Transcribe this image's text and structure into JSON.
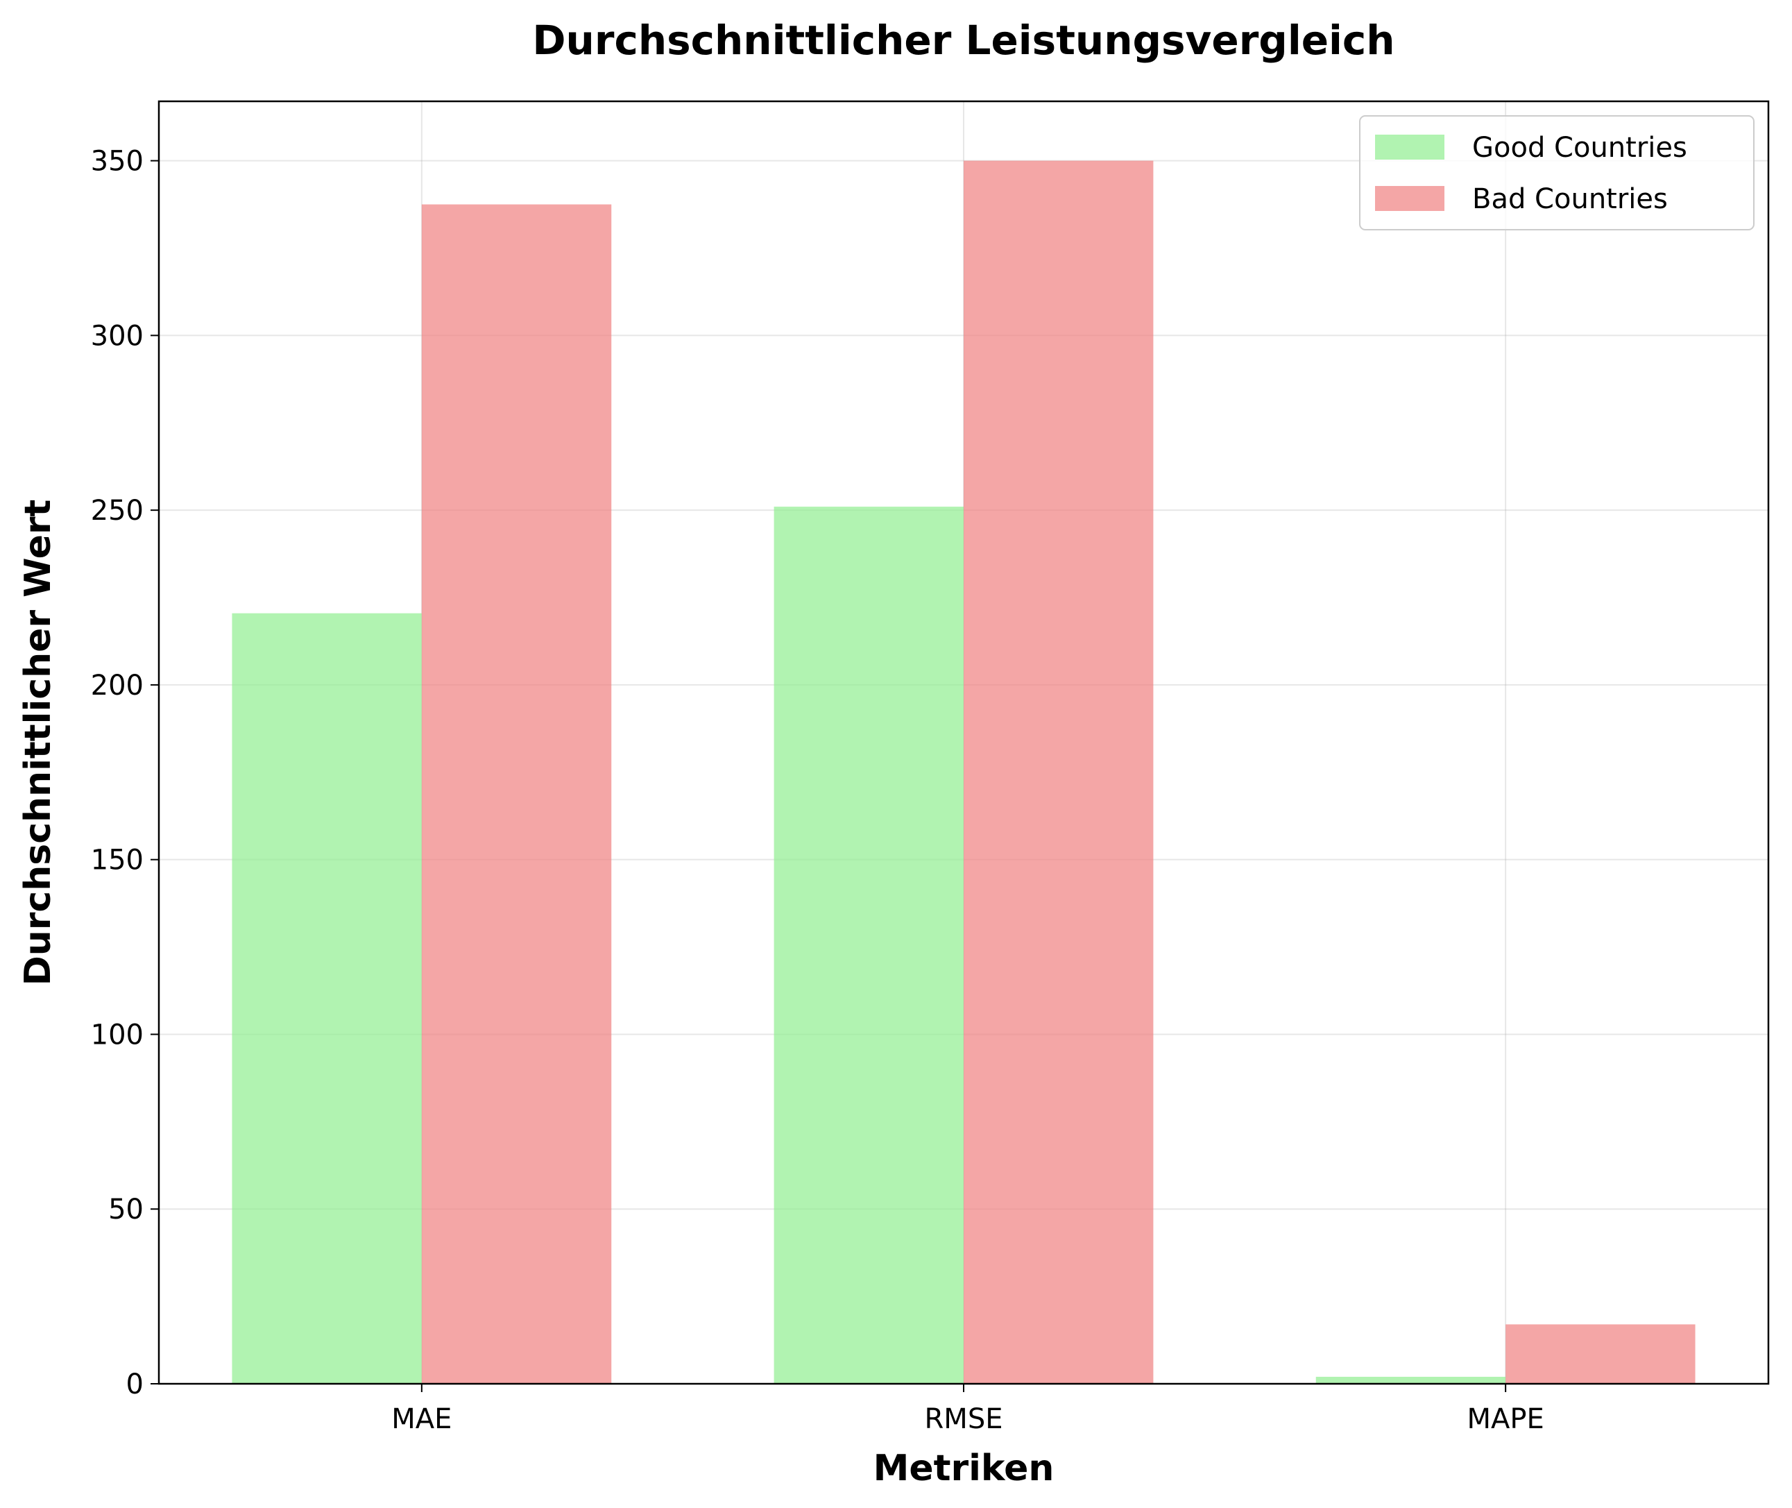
{
  "chart_data": {
    "type": "bar",
    "title": "Durchschnittlicher Leistungsvergleich",
    "xlabel": "Metriken",
    "ylabel": "Durchschnittlicher Wert",
    "categories": [
      "MAE",
      "RMSE",
      "MAPE"
    ],
    "series": [
      {
        "name": "Good Countries",
        "values": [
          220.5,
          251.0,
          2.0
        ],
        "color": "#90ee90"
      },
      {
        "name": "Bad Countries",
        "values": [
          337.5,
          350.0,
          17.0
        ],
        "color": "#f08080"
      }
    ],
    "ylim": [
      0,
      367
    ],
    "yticks": [
      0,
      50,
      100,
      150,
      200,
      250,
      300,
      350
    ],
    "grid": true,
    "legend": "upper-right"
  }
}
